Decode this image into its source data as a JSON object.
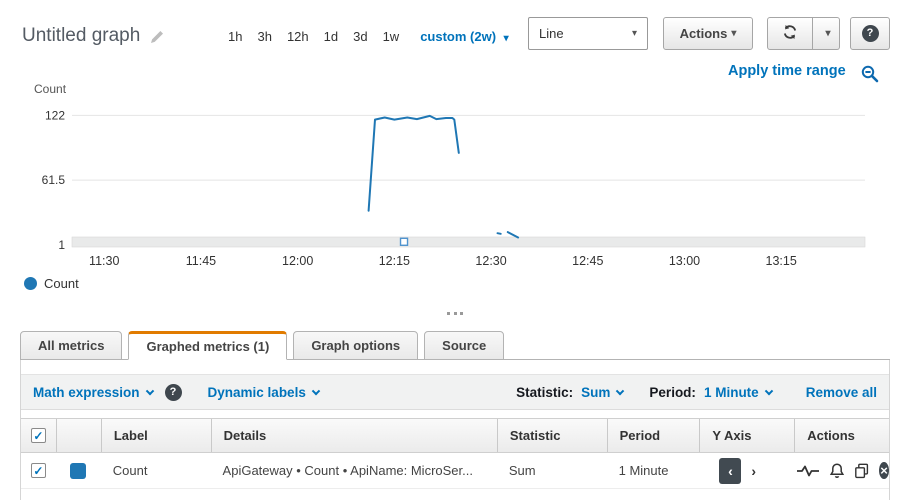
{
  "header": {
    "title": "Untitled graph",
    "time_ranges": [
      "1h",
      "3h",
      "12h",
      "1d",
      "3d",
      "1w"
    ],
    "custom_range_label": "custom (2w)",
    "chart_type_select": "Line",
    "actions_button": "Actions",
    "apply_time_range": "Apply time range"
  },
  "chart_data": {
    "type": "line",
    "title": "",
    "xlabel": "",
    "ylabel": "Count",
    "ylim": [
      1,
      141
    ],
    "y_ticks": [
      {
        "v": 122,
        "label": "122"
      },
      {
        "v": 61.5,
        "label": "61.5"
      },
      {
        "v": 1,
        "label": "1"
      }
    ],
    "xlim_minutes_after_11": [
      25,
      148
    ],
    "x_ticks": [
      {
        "x": 30,
        "label": "11:30"
      },
      {
        "x": 45,
        "label": "11:45"
      },
      {
        "x": 60,
        "label": "12:00"
      },
      {
        "x": 75,
        "label": "12:15"
      },
      {
        "x": 90,
        "label": "12:30"
      },
      {
        "x": 105,
        "label": "12:45"
      },
      {
        "x": 120,
        "label": "13:00"
      },
      {
        "x": 135,
        "label": "13:15"
      }
    ],
    "grid": true,
    "legend_position": "bottom-left",
    "series": [
      {
        "name": "Count",
        "color": "#1f77b4",
        "segments": [
          [
            [
              71,
              33
            ],
            [
              72,
              118
            ],
            [
              73.5,
              120
            ],
            [
              75,
              118
            ],
            [
              77,
              120
            ],
            [
              78.5,
              118.5
            ],
            [
              80.5,
              121.5
            ],
            [
              81.5,
              118.5
            ],
            [
              83,
              119.5
            ],
            [
              84,
              119.5
            ],
            [
              84.3,
              118
            ],
            [
              85,
              87
            ]
          ],
          [
            [
              91,
              12
            ],
            [
              91.5,
              11.5
            ]
          ],
          [
            [
              92.6,
              13
            ],
            [
              94.2,
              8
            ]
          ]
        ]
      }
    ],
    "brush_marker": {
      "x": 76.5,
      "v": 4
    }
  },
  "legend": {
    "items": [
      {
        "label": "Count",
        "color": "#1f77b4"
      }
    ]
  },
  "tabs": [
    {
      "label": "All metrics",
      "active": false
    },
    {
      "label": "Graphed metrics (1)",
      "active": true
    },
    {
      "label": "Graph options",
      "active": false
    },
    {
      "label": "Source",
      "active": false
    }
  ],
  "metrics_toolbar": {
    "math_expression": "Math expression",
    "dynamic_labels": "Dynamic labels",
    "statistic_label": "Statistic:",
    "statistic_value": "Sum",
    "period_label": "Period:",
    "period_value": "1 Minute",
    "remove_all": "Remove all"
  },
  "table": {
    "headers": {
      "label": "Label",
      "details": "Details",
      "statistic": "Statistic",
      "period": "Period",
      "y_axis": "Y Axis",
      "actions": "Actions"
    },
    "row": {
      "label": "Count",
      "details": "ApiGateway • Count • ApiName: MicroSer...",
      "statistic": "Sum",
      "period": "1 Minute",
      "color": "#1f77b4",
      "checked": true
    }
  },
  "colors": {
    "link_blue": "#0073bb",
    "accent_orange": "#e17b00",
    "series_blue": "#1f77b4"
  }
}
